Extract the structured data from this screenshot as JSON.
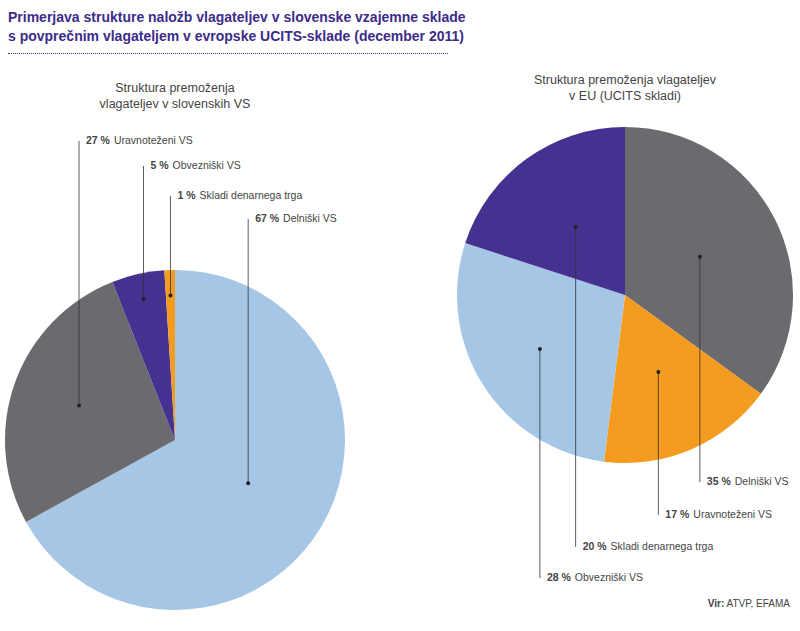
{
  "title": [
    "Primerjava strukture naložb vlagateljev v slovenske vzajemne sklade",
    "s povprečnim vlagateljem v evropske UCITS-sklade (december 2011)"
  ],
  "source": "Vir: ATVP, EFAMA",
  "chart_data": [
    {
      "type": "pie",
      "title": [
        "Struktura premoženja",
        "vlagateljev v slovenskih VS"
      ],
      "categories": [
        "Delniški VS",
        "Uravnoteženi VS",
        "Obvezniški VS",
        "Skladi denarnega trga"
      ],
      "values": [
        67,
        27,
        5,
        1
      ],
      "value_labels": [
        "67 %",
        "27 %",
        "5 %",
        "1 %"
      ],
      "colors": [
        "#a6c6e6",
        "#6b6b6f",
        "#45318f",
        "#f39c1f"
      ],
      "data_labels": true
    },
    {
      "type": "pie",
      "title": [
        "Struktura premoženja vlagateljev",
        "v EU (UCITS skladi)"
      ],
      "categories": [
        "Delniški VS",
        "Uravnoteženi VS",
        "Obvezniški VS",
        "Skladi denarnega trga"
      ],
      "values": [
        35,
        17,
        28,
        20
      ],
      "value_labels": [
        "35 %",
        "17 %",
        "28 %",
        "20 %"
      ],
      "colors": [
        "#6b6b6f",
        "#f39c1f",
        "#a6c6e6",
        "#45318f"
      ],
      "data_labels": true
    }
  ]
}
